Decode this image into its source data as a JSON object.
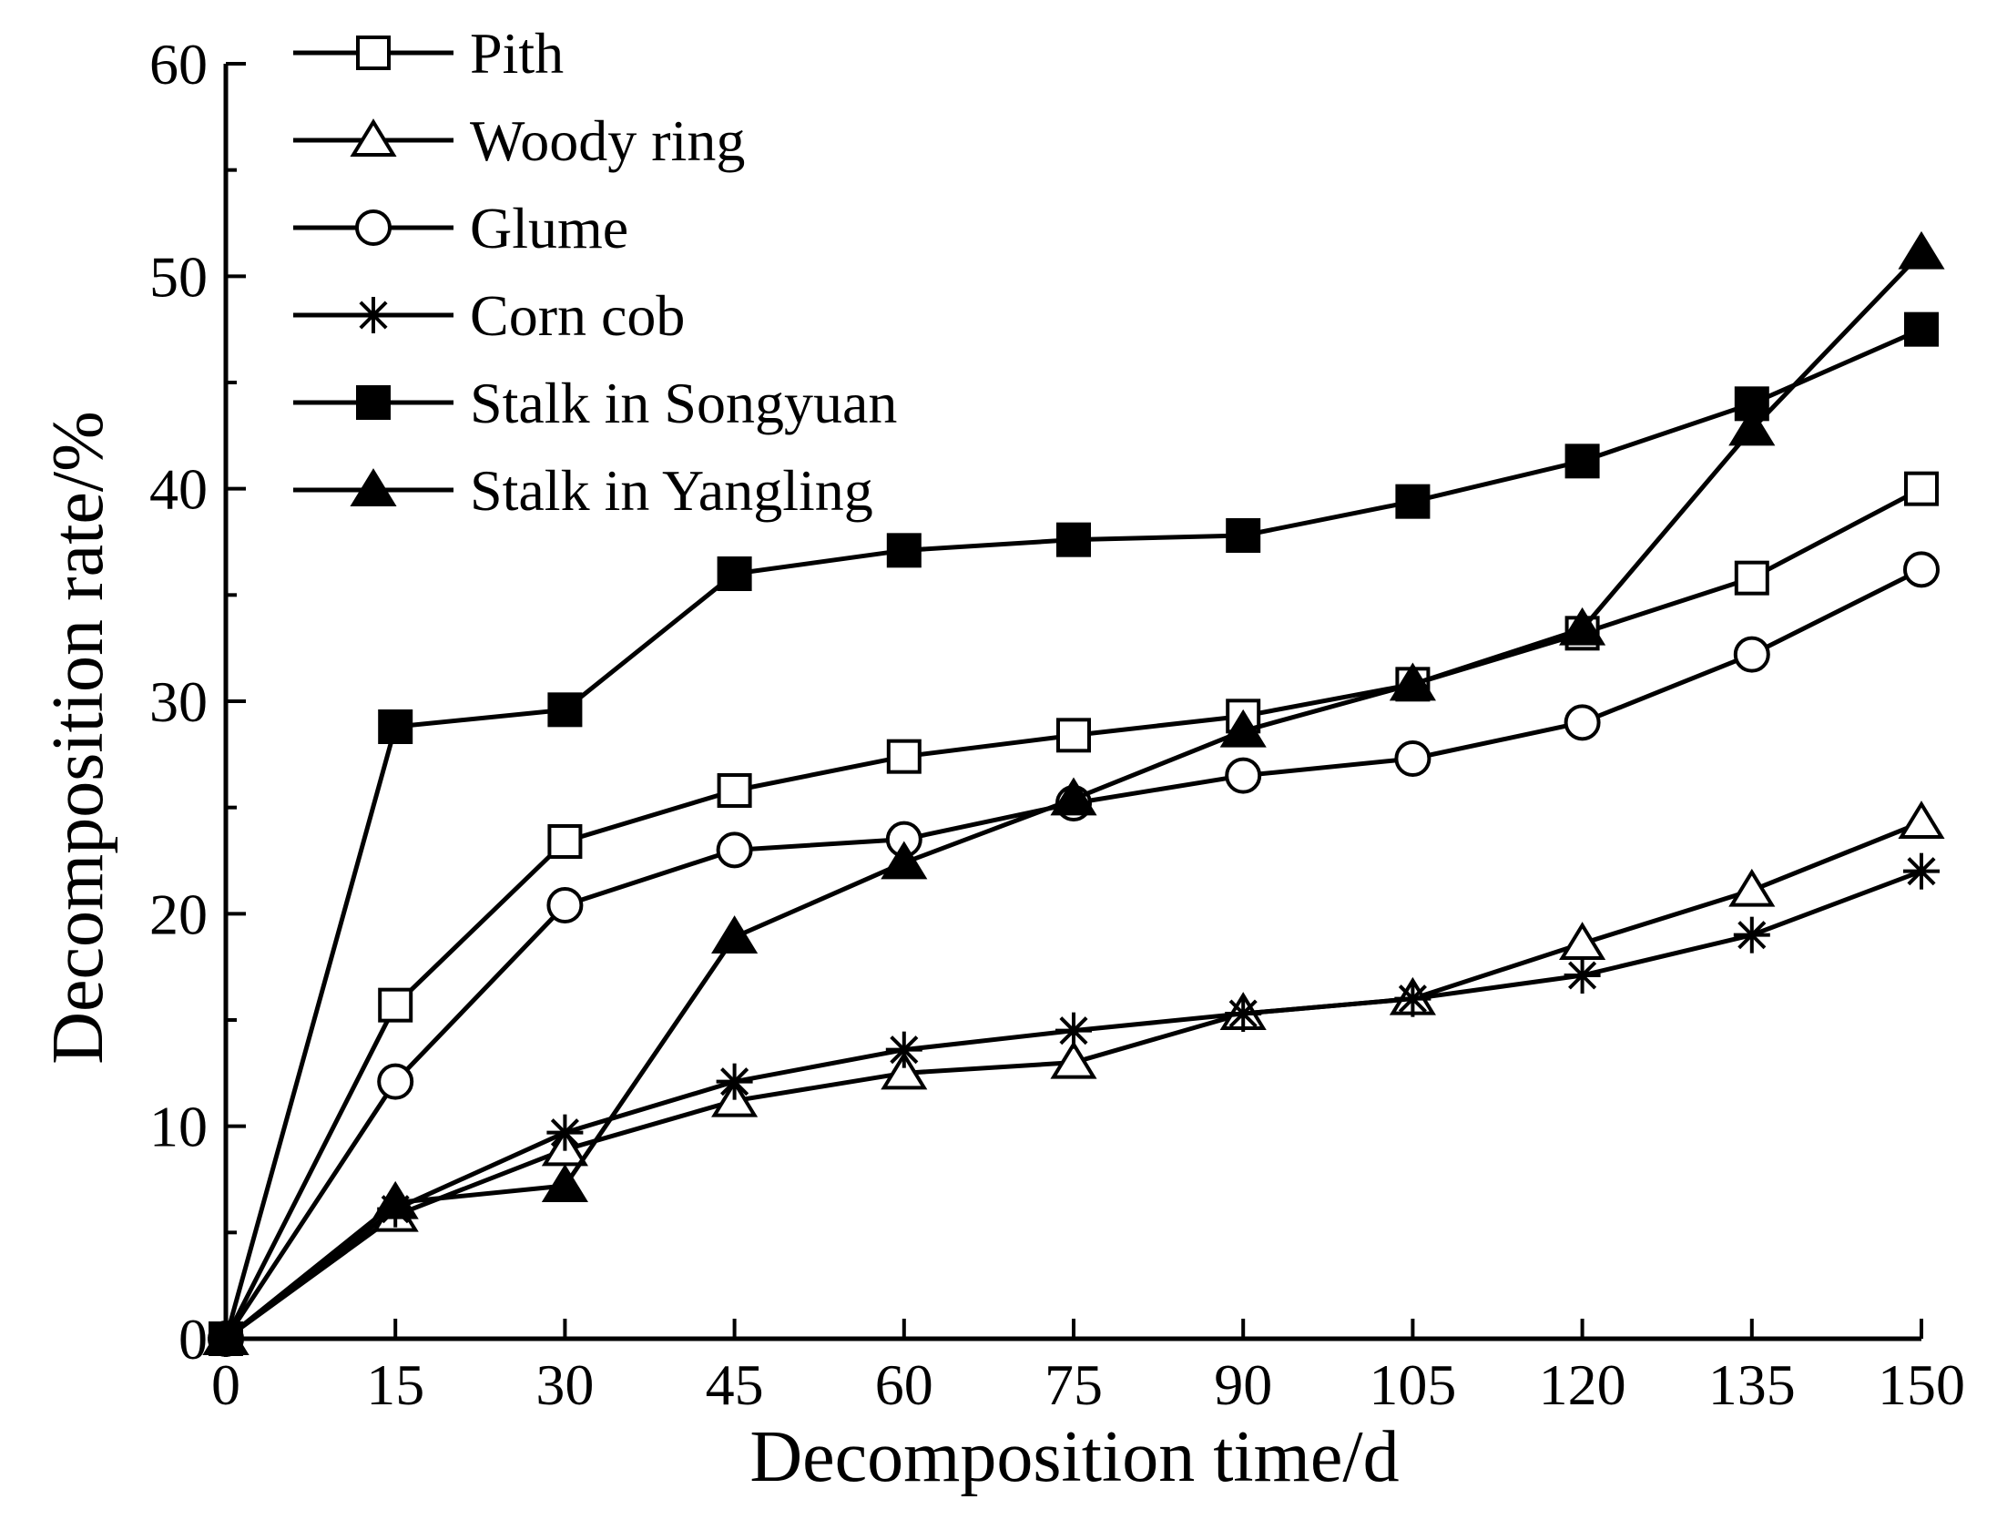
{
  "chart_data": {
    "type": "line",
    "title": "",
    "xlabel": "Decomposition time/d",
    "ylabel": "Decomposition rate/%",
    "x": [
      0,
      15,
      30,
      45,
      60,
      75,
      90,
      105,
      120,
      135,
      150
    ],
    "xlim": [
      0,
      150
    ],
    "ylim": [
      0,
      60
    ],
    "xticks": [
      0,
      15,
      30,
      45,
      60,
      75,
      90,
      105,
      120,
      135,
      150
    ],
    "yticks": [
      0,
      10,
      20,
      30,
      40,
      50,
      60
    ],
    "xtick_labels": [
      "0",
      "15",
      "30",
      "45",
      "60",
      "75",
      "90",
      "105",
      "120",
      "135",
      "150"
    ],
    "ytick_labels": [
      "0",
      "10",
      "20",
      "30",
      "40",
      "50",
      "60"
    ],
    "grid": false,
    "legend_position": "top-left",
    "series": [
      {
        "name": "Pith",
        "marker": "square-open",
        "values": [
          0,
          15.7,
          23.4,
          25.8,
          27.4,
          28.4,
          29.3,
          30.8,
          33.2,
          35.8,
          40.0
        ]
      },
      {
        "name": "Woody ring",
        "marker": "triangle-open",
        "values": [
          0,
          5.8,
          8.9,
          11.2,
          12.5,
          13.0,
          15.3,
          16.0,
          18.6,
          21.1,
          24.3
        ]
      },
      {
        "name": "Glume",
        "marker": "circle-open",
        "values": [
          0,
          12.1,
          20.4,
          23.0,
          23.5,
          25.2,
          26.5,
          27.3,
          29.0,
          32.2,
          36.2
        ]
      },
      {
        "name": "Corn cob",
        "marker": "asterisk",
        "values": [
          0,
          6.1,
          9.7,
          12.1,
          13.6,
          14.5,
          15.3,
          16.0,
          17.1,
          19.0,
          22.0
        ]
      },
      {
        "name": "Stalk in Songyuan",
        "marker": "square-filled",
        "values": [
          0,
          28.8,
          29.6,
          36.0,
          37.1,
          37.6,
          37.8,
          39.4,
          41.3,
          44.0,
          47.5
        ]
      },
      {
        "name": "Stalk in Yangling",
        "marker": "triangle-filled",
        "values": [
          0,
          6.4,
          7.2,
          18.9,
          22.4,
          25.4,
          28.6,
          30.8,
          33.4,
          42.8,
          51.1
        ]
      }
    ]
  }
}
